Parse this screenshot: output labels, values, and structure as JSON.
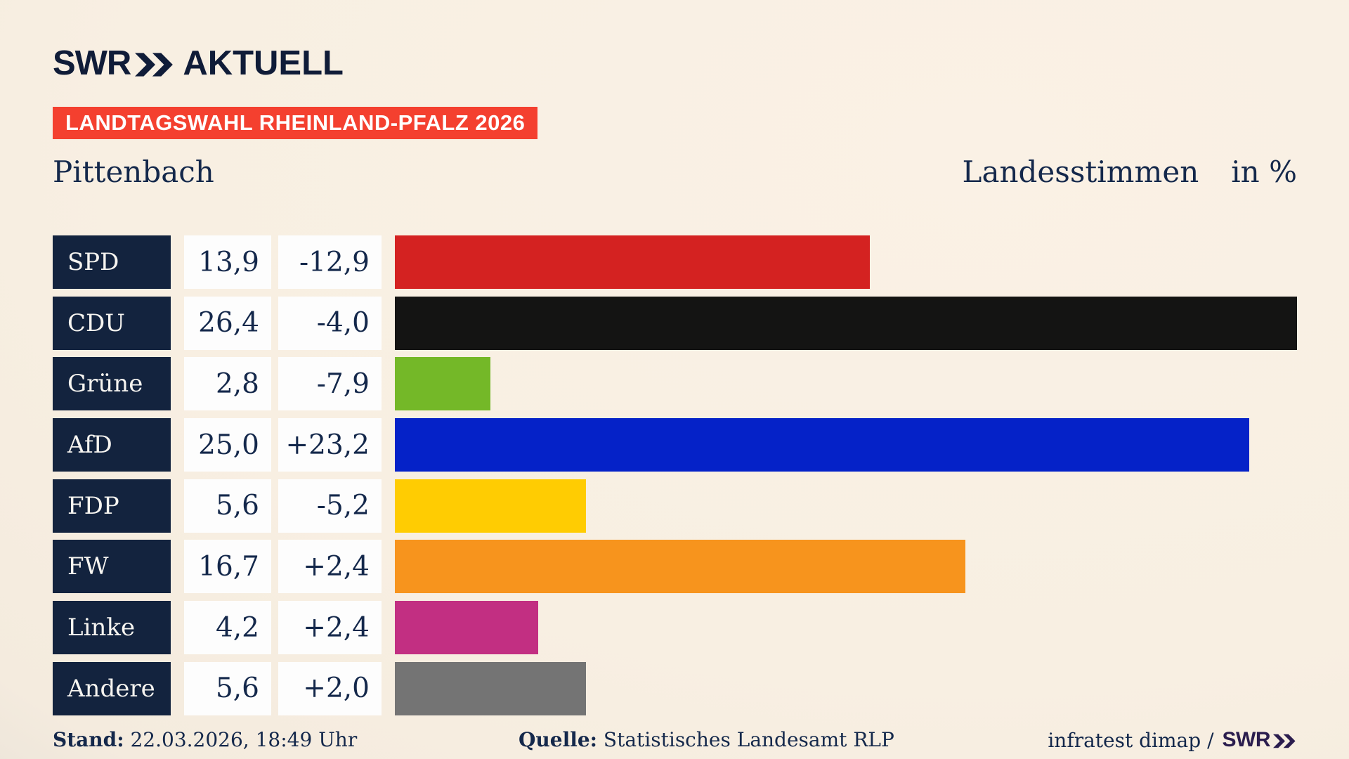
{
  "header": {
    "logo_brand": "SWR",
    "logo_suffix": "AKTUELL",
    "badge": "LANDTAGSWAHL RHEINLAND-PFALZ 2026"
  },
  "title": {
    "region": "Pittenbach",
    "measure": "Landesstimmen",
    "unit": "in %"
  },
  "chart_data": {
    "type": "bar",
    "orientation": "horizontal",
    "title": "Pittenbach – Landesstimmen in %",
    "unit": "%",
    "scale_max": 26.4,
    "categories": [
      "SPD",
      "CDU",
      "Grüne",
      "AfD",
      "FDP",
      "FW",
      "Linke",
      "Andere"
    ],
    "values": [
      13.9,
      26.4,
      2.8,
      25.0,
      5.6,
      16.7,
      4.2,
      5.6
    ],
    "value_labels": [
      "13,9",
      "26,4",
      "2,8",
      "25,0",
      "5,6",
      "16,7",
      "4,2",
      "5,6"
    ],
    "change_labels": [
      "-12,9",
      "-4,0",
      "-7,9",
      "+23,2",
      "-5,2",
      "+2,4",
      "+2,4",
      "+2,0"
    ],
    "bar_colors": [
      "#d42221",
      "#141413",
      "#74b828",
      "#0522c8",
      "#ffcc02",
      "#f7941d",
      "#c22f82",
      "#747474"
    ],
    "grid": false,
    "legend": false
  },
  "footer": {
    "stand_label": "Stand:",
    "stand_value": "22.03.2026, 18:49 Uhr",
    "quelle_label": "Quelle:",
    "quelle_value": "Statistisches Landesamt RLP",
    "credit_prefix": "infratest dimap /",
    "credit_brand": "SWR"
  },
  "colors": {
    "badge_red": "#f4402f",
    "label_navy": "#13233e",
    "text_navy": "#14284b",
    "logo_navy": "#101c38",
    "footer_brand_purple": "#2b1d4e",
    "background_cream": "#f8efe2",
    "background_gray": "#c7c4bf",
    "value_box_white": "#fdfdfd"
  }
}
